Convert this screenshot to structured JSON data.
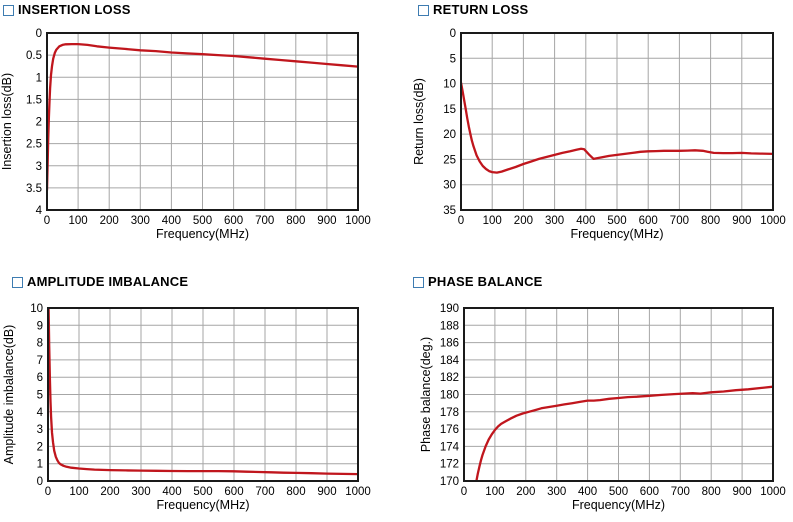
{
  "styles": {
    "curve_color": "#c0161d",
    "grid_color": "#a6a6a6",
    "axis_color": "#1a1a1a",
    "text_color": "#000000",
    "checkbox_border": "#3e7cb1",
    "background": "#ffffff"
  },
  "chart_data": [
    {
      "id": "insertion-loss",
      "type": "line",
      "title": "INSERTION LOSS",
      "xlabel": "Frequency(MHz)",
      "ylabel": "Insertion loss(dB)",
      "xlim": [
        0,
        1000
      ],
      "x_ticks": [
        0,
        100,
        200,
        300,
        400,
        500,
        600,
        700,
        800,
        900,
        1000
      ],
      "y_axis_top_to_bottom": [
        0,
        4
      ],
      "y_ticks": [
        0,
        0.5,
        1,
        1.5,
        2,
        2.5,
        3,
        3.5,
        4
      ],
      "grid": true,
      "legend": "none",
      "series": [
        {
          "name": "insertion loss",
          "points": [
            [
              0,
              3.55
            ],
            [
              2,
              3.0
            ],
            [
              4,
              2.4
            ],
            [
              6,
              1.9
            ],
            [
              8,
              1.55
            ],
            [
              10,
              1.25
            ],
            [
              13,
              0.95
            ],
            [
              16,
              0.75
            ],
            [
              20,
              0.58
            ],
            [
              25,
              0.45
            ],
            [
              30,
              0.38
            ],
            [
              40,
              0.3
            ],
            [
              50,
              0.27
            ],
            [
              60,
              0.255
            ],
            [
              80,
              0.25
            ],
            [
              100,
              0.25
            ],
            [
              130,
              0.27
            ],
            [
              160,
              0.3
            ],
            [
              200,
              0.33
            ],
            [
              250,
              0.36
            ],
            [
              300,
              0.39
            ],
            [
              350,
              0.41
            ],
            [
              400,
              0.44
            ],
            [
              450,
              0.46
            ],
            [
              500,
              0.48
            ],
            [
              550,
              0.5
            ],
            [
              600,
              0.52
            ],
            [
              650,
              0.55
            ],
            [
              700,
              0.58
            ],
            [
              750,
              0.61
            ],
            [
              800,
              0.64
            ],
            [
              850,
              0.67
            ],
            [
              900,
              0.7
            ],
            [
              950,
              0.73
            ],
            [
              1000,
              0.76
            ]
          ]
        }
      ]
    },
    {
      "id": "return-loss",
      "type": "line",
      "title": "RETURN LOSS",
      "xlabel": "Frequency(MHz)",
      "ylabel": "Return loss(dB)",
      "xlim": [
        0,
        1000
      ],
      "x_ticks": [
        0,
        100,
        200,
        300,
        400,
        500,
        600,
        700,
        800,
        900,
        1000
      ],
      "y_axis_top_to_bottom": [
        0,
        35
      ],
      "y_ticks": [
        0,
        5,
        10,
        15,
        20,
        25,
        30,
        35
      ],
      "grid": true,
      "legend": "none",
      "series": [
        {
          "name": "return loss",
          "points": [
            [
              0,
              9.8
            ],
            [
              5,
              11.5
            ],
            [
              10,
              13.2
            ],
            [
              15,
              15.0
            ],
            [
              20,
              16.8
            ],
            [
              25,
              18.5
            ],
            [
              30,
              20.0
            ],
            [
              35,
              21.3
            ],
            [
              40,
              22.4
            ],
            [
              50,
              24.2
            ],
            [
              60,
              25.4
            ],
            [
              70,
              26.3
            ],
            [
              80,
              26.9
            ],
            [
              90,
              27.3
            ],
            [
              100,
              27.5
            ],
            [
              115,
              27.6
            ],
            [
              130,
              27.4
            ],
            [
              150,
              27.0
            ],
            [
              175,
              26.5
            ],
            [
              200,
              25.9
            ],
            [
              225,
              25.4
            ],
            [
              250,
              24.9
            ],
            [
              275,
              24.5
            ],
            [
              300,
              24.1
            ],
            [
              325,
              23.7
            ],
            [
              350,
              23.4
            ],
            [
              370,
              23.1
            ],
            [
              385,
              22.9
            ],
            [
              395,
              23.0
            ],
            [
              410,
              24.0
            ],
            [
              425,
              24.9
            ],
            [
              450,
              24.6
            ],
            [
              475,
              24.3
            ],
            [
              500,
              24.1
            ],
            [
              525,
              23.9
            ],
            [
              550,
              23.7
            ],
            [
              575,
              23.5
            ],
            [
              600,
              23.4
            ],
            [
              625,
              23.35
            ],
            [
              650,
              23.3
            ],
            [
              675,
              23.3
            ],
            [
              700,
              23.3
            ],
            [
              725,
              23.25
            ],
            [
              750,
              23.2
            ],
            [
              775,
              23.3
            ],
            [
              790,
              23.5
            ],
            [
              810,
              23.7
            ],
            [
              840,
              23.75
            ],
            [
              870,
              23.75
            ],
            [
              900,
              23.7
            ],
            [
              930,
              23.8
            ],
            [
              960,
              23.85
            ],
            [
              1000,
              23.9
            ]
          ]
        }
      ]
    },
    {
      "id": "amplitude-imbalance",
      "type": "line",
      "title": "AMPLITUDE IMBALANCE",
      "xlabel": "Frequency(MHz)",
      "ylabel": "Amplitude imbalance(dB)",
      "xlim": [
        0,
        1000
      ],
      "x_ticks": [
        0,
        100,
        200,
        300,
        400,
        500,
        600,
        700,
        800,
        900,
        1000
      ],
      "y_axis_top_to_bottom": [
        10,
        0
      ],
      "y_ticks": [
        10,
        9,
        8,
        7,
        6,
        5,
        4,
        3,
        2,
        1,
        0
      ],
      "grid": true,
      "legend": "none",
      "series": [
        {
          "name": "amplitude imbalance",
          "points": [
            [
              2,
              10
            ],
            [
              4,
              7.8
            ],
            [
              6,
              5.9
            ],
            [
              8,
              4.6
            ],
            [
              10,
              3.7
            ],
            [
              13,
              2.8
            ],
            [
              16,
              2.25
            ],
            [
              20,
              1.75
            ],
            [
              25,
              1.4
            ],
            [
              30,
              1.2
            ],
            [
              35,
              1.05
            ],
            [
              40,
              0.97
            ],
            [
              50,
              0.88
            ],
            [
              60,
              0.82
            ],
            [
              75,
              0.77
            ],
            [
              100,
              0.72
            ],
            [
              125,
              0.69
            ],
            [
              150,
              0.66
            ],
            [
              175,
              0.64
            ],
            [
              200,
              0.63
            ],
            [
              250,
              0.61
            ],
            [
              300,
              0.6
            ],
            [
              350,
              0.59
            ],
            [
              400,
              0.58
            ],
            [
              450,
              0.575
            ],
            [
              500,
              0.57
            ],
            [
              550,
              0.57
            ],
            [
              600,
              0.56
            ],
            [
              640,
              0.54
            ],
            [
              680,
              0.52
            ],
            [
              720,
              0.5
            ],
            [
              760,
              0.48
            ],
            [
              800,
              0.47
            ],
            [
              850,
              0.45
            ],
            [
              900,
              0.43
            ],
            [
              950,
              0.41
            ],
            [
              1000,
              0.4
            ]
          ]
        }
      ]
    },
    {
      "id": "phase-balance",
      "type": "line",
      "title": "PHASE BALANCE",
      "xlabel": "Frequency(MHz)",
      "ylabel": "Phase balance(deg.)",
      "xlim": [
        0,
        1000
      ],
      "x_ticks": [
        0,
        100,
        200,
        300,
        400,
        500,
        600,
        700,
        800,
        900,
        1000
      ],
      "y_axis_top_to_bottom": [
        190,
        170
      ],
      "y_ticks": [
        190,
        188,
        186,
        184,
        182,
        180,
        178,
        176,
        174,
        172,
        170
      ],
      "grid": true,
      "legend": "none",
      "series": [
        {
          "name": "phase balance",
          "points": [
            [
              40,
              170.0
            ],
            [
              45,
              170.9
            ],
            [
              50,
              171.7
            ],
            [
              55,
              172.4
            ],
            [
              60,
              173.0
            ],
            [
              70,
              174.0
            ],
            [
              80,
              174.8
            ],
            [
              90,
              175.4
            ],
            [
              100,
              175.9
            ],
            [
              110,
              176.3
            ],
            [
              120,
              176.6
            ],
            [
              135,
              176.9
            ],
            [
              150,
              177.2
            ],
            [
              170,
              177.55
            ],
            [
              190,
              177.8
            ],
            [
              210,
              178.0
            ],
            [
              230,
              178.2
            ],
            [
              250,
              178.4
            ],
            [
              275,
              178.55
            ],
            [
              300,
              178.7
            ],
            [
              325,
              178.85
            ],
            [
              350,
              179.0
            ],
            [
              375,
              179.15
            ],
            [
              400,
              179.3
            ],
            [
              420,
              179.3
            ],
            [
              440,
              179.35
            ],
            [
              470,
              179.5
            ],
            [
              500,
              179.6
            ],
            [
              530,
              179.7
            ],
            [
              560,
              179.75
            ],
            [
              600,
              179.85
            ],
            [
              640,
              179.95
            ],
            [
              680,
              180.05
            ],
            [
              710,
              180.1
            ],
            [
              740,
              180.15
            ],
            [
              765,
              180.1
            ],
            [
              800,
              180.25
            ],
            [
              840,
              180.35
            ],
            [
              880,
              180.5
            ],
            [
              920,
              180.6
            ],
            [
              960,
              180.75
            ],
            [
              1000,
              180.9
            ]
          ]
        }
      ]
    }
  ]
}
